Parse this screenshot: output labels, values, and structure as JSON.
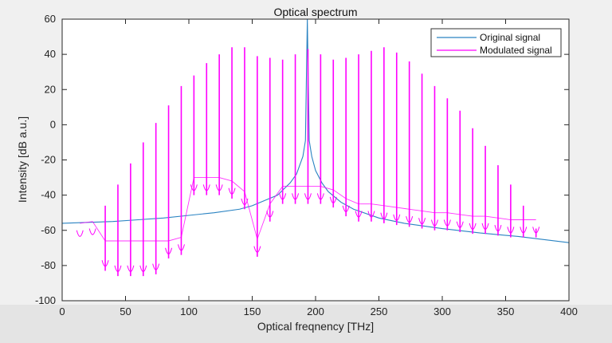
{
  "chart_data": {
    "type": "line",
    "title": "Optical spectrum",
    "xlabel": "Optical freqnency [THz]",
    "ylabel": "Intensity [dB a.u.]",
    "xlim": [
      0,
      400
    ],
    "ylim": [
      -100,
      60
    ],
    "xticks": [
      0,
      50,
      100,
      150,
      200,
      250,
      300,
      350,
      400
    ],
    "yticks": [
      -100,
      -80,
      -60,
      -40,
      -20,
      0,
      20,
      40,
      60
    ],
    "grid": false,
    "legend_position": "top-right",
    "carrier_frequency": 193.5,
    "series": [
      {
        "name": "Original signal",
        "color": "#2a83c2",
        "x": [
          0,
          20,
          40,
          60,
          80,
          100,
          120,
          140,
          150,
          160,
          170,
          180,
          185,
          190,
          192,
          193.5,
          195,
          197,
          200,
          205,
          210,
          220,
          230,
          250,
          270,
          300,
          330,
          360,
          400
        ],
        "y": [
          -56,
          -55.5,
          -55,
          -54,
          -53,
          -51.5,
          -50,
          -48,
          -46,
          -43,
          -40,
          -33,
          -28,
          -18,
          -9,
          60,
          -9,
          -18,
          -26,
          -33,
          -38,
          -44,
          -48,
          -53,
          -56,
          -59,
          -61.5,
          -63.5,
          -67
        ]
      },
      {
        "name": "Modulated signal",
        "color": "#ff00ff",
        "lines": [
          {
            "x": 14,
            "peak": -66,
            "dip": -66
          },
          {
            "x": 24,
            "peak": -65,
            "dip": -65
          },
          {
            "x": 34,
            "peak": -46,
            "dip": -83
          },
          {
            "x": 44,
            "peak": -34,
            "dip": -86
          },
          {
            "x": 54,
            "peak": -22,
            "dip": -86
          },
          {
            "x": 64,
            "peak": -10,
            "dip": -86
          },
          {
            "x": 74,
            "peak": 1,
            "dip": -85
          },
          {
            "x": 84,
            "peak": 11,
            "dip": -76
          },
          {
            "x": 94,
            "peak": 22,
            "dip": -74
          },
          {
            "x": 104,
            "peak": 28,
            "dip": -40
          },
          {
            "x": 114,
            "peak": 35,
            "dip": -40
          },
          {
            "x": 124,
            "peak": 40,
            "dip": -40
          },
          {
            "x": 134,
            "peak": 44,
            "dip": -42
          },
          {
            "x": 144,
            "peak": 44,
            "dip": -48
          },
          {
            "x": 154,
            "peak": 39,
            "dip": -75
          },
          {
            "x": 164,
            "peak": 38,
            "dip": -55
          },
          {
            "x": 174,
            "peak": 37,
            "dip": -45
          },
          {
            "x": 184,
            "peak": 40,
            "dip": -45
          },
          {
            "x": 194,
            "peak": 43,
            "dip": -45
          },
          {
            "x": 204,
            "peak": 40,
            "dip": -45
          },
          {
            "x": 214,
            "peak": 37,
            "dip": -47
          },
          {
            "x": 224,
            "peak": 38,
            "dip": -52
          },
          {
            "x": 234,
            "peak": 40,
            "dip": -55
          },
          {
            "x": 244,
            "peak": 42,
            "dip": -55
          },
          {
            "x": 254,
            "peak": 44,
            "dip": -56
          },
          {
            "x": 264,
            "peak": 41,
            "dip": -57
          },
          {
            "x": 274,
            "peak": 36,
            "dip": -58
          },
          {
            "x": 284,
            "peak": 29,
            "dip": -59
          },
          {
            "x": 294,
            "peak": 22,
            "dip": -60
          },
          {
            "x": 304,
            "peak": 15,
            "dip": -60
          },
          {
            "x": 314,
            "peak": 8,
            "dip": -61
          },
          {
            "x": 324,
            "peak": -2,
            "dip": -62
          },
          {
            "x": 334,
            "peak": -12,
            "dip": -62
          },
          {
            "x": 344,
            "peak": -23,
            "dip": -63
          },
          {
            "x": 354,
            "peak": -34,
            "dip": -64
          },
          {
            "x": 364,
            "peak": -46,
            "dip": -64
          },
          {
            "x": 374,
            "peak": -59,
            "dip": -64
          }
        ]
      }
    ]
  }
}
